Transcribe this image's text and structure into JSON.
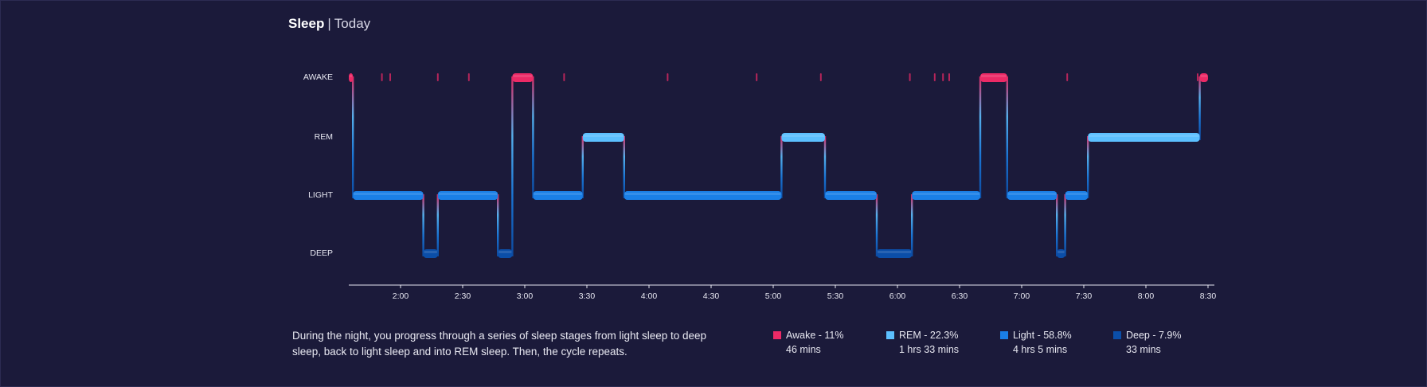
{
  "header": {
    "title": "Sleep",
    "separator": "|",
    "subtitle": "Today"
  },
  "colors": {
    "background": "#1b1a3a",
    "awake": "#ec2a66",
    "rem": "#5cc0ff",
    "light": "#1a7fe6",
    "deep": "#0b4ea8",
    "axis": "#e6e6f0"
  },
  "chart_data": {
    "type": "area",
    "title": "",
    "stage_labels": [
      "AWAKE",
      "REM",
      "LIGHT",
      "DEEP"
    ],
    "x_ticks": [
      "2:00",
      "2:30",
      "3:00",
      "3:30",
      "4:00",
      "4:30",
      "5:00",
      "5:30",
      "6:00",
      "6:30",
      "7:00",
      "7:30",
      "8:00",
      "8:30"
    ],
    "x_range": [
      "1:35",
      "8:30"
    ],
    "segments": [
      {
        "stage": "AWAKE",
        "start": "1:35",
        "end": "1:37"
      },
      {
        "stage": "LIGHT",
        "start": "1:37",
        "end": "2:11"
      },
      {
        "stage": "DEEP",
        "start": "2:11",
        "end": "2:18"
      },
      {
        "stage": "LIGHT",
        "start": "2:18",
        "end": "2:47"
      },
      {
        "stage": "DEEP",
        "start": "2:47",
        "end": "2:54"
      },
      {
        "stage": "AWAKE",
        "start": "2:54",
        "end": "3:04"
      },
      {
        "stage": "LIGHT",
        "start": "3:04",
        "end": "3:28"
      },
      {
        "stage": "REM",
        "start": "3:28",
        "end": "3:48"
      },
      {
        "stage": "LIGHT",
        "start": "3:48",
        "end": "5:04"
      },
      {
        "stage": "REM",
        "start": "5:04",
        "end": "5:25"
      },
      {
        "stage": "LIGHT",
        "start": "5:25",
        "end": "5:50"
      },
      {
        "stage": "DEEP",
        "start": "5:50",
        "end": "6:07"
      },
      {
        "stage": "LIGHT",
        "start": "6:07",
        "end": "6:40"
      },
      {
        "stage": "AWAKE",
        "start": "6:40",
        "end": "6:53"
      },
      {
        "stage": "LIGHT",
        "start": "6:53",
        "end": "7:17"
      },
      {
        "stage": "DEEP",
        "start": "7:17",
        "end": "7:21"
      },
      {
        "stage": "LIGHT",
        "start": "7:21",
        "end": "7:32"
      },
      {
        "stage": "REM",
        "start": "7:32",
        "end": "8:26"
      },
      {
        "stage": "AWAKE",
        "start": "8:26",
        "end": "8:30"
      }
    ],
    "brief_awakenings": [
      "1:51",
      "1:55",
      "2:18",
      "2:33",
      "3:19",
      "4:09",
      "4:52",
      "5:23",
      "6:06",
      "6:18",
      "6:22",
      "6:25",
      "7:22",
      "8:25"
    ]
  },
  "description": "During the night, you progress through a series of sleep stages from light sleep to deep sleep, back to light sleep and into REM sleep. Then, the cycle repeats.",
  "legend": [
    {
      "key": "awake",
      "label": "Awake - 11%",
      "duration": "46 mins"
    },
    {
      "key": "rem",
      "label": "REM - 22.3%",
      "duration": "1 hrs 33 mins"
    },
    {
      "key": "light",
      "label": "Light - 58.8%",
      "duration": "4 hrs 5 mins"
    },
    {
      "key": "deep",
      "label": "Deep - 7.9%",
      "duration": "33 mins"
    }
  ]
}
